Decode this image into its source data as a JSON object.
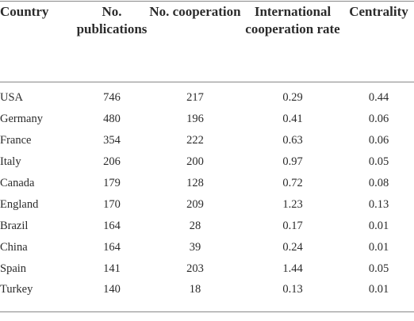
{
  "table": {
    "header": [
      "Country",
      "No. publications",
      "No. cooperation",
      "International cooperation rate",
      "Centrality"
    ],
    "rows": [
      [
        "USA",
        746,
        217,
        0.29,
        0.44
      ],
      [
        "Germany",
        480,
        196,
        0.41,
        0.06
      ],
      [
        "France",
        354,
        222,
        0.63,
        0.06
      ],
      [
        "Italy",
        206,
        200,
        0.97,
        0.05
      ],
      [
        "Canada",
        179,
        128,
        0.72,
        0.08
      ],
      [
        "England",
        170,
        209,
        1.23,
        0.13
      ],
      [
        "Brazil",
        164,
        28,
        0.17,
        0.01
      ],
      [
        "China",
        164,
        39,
        0.24,
        0.01
      ],
      [
        "Spain",
        141,
        203,
        1.44,
        0.05
      ],
      [
        "Turkey",
        140,
        18,
        0.13,
        0.01
      ]
    ]
  }
}
